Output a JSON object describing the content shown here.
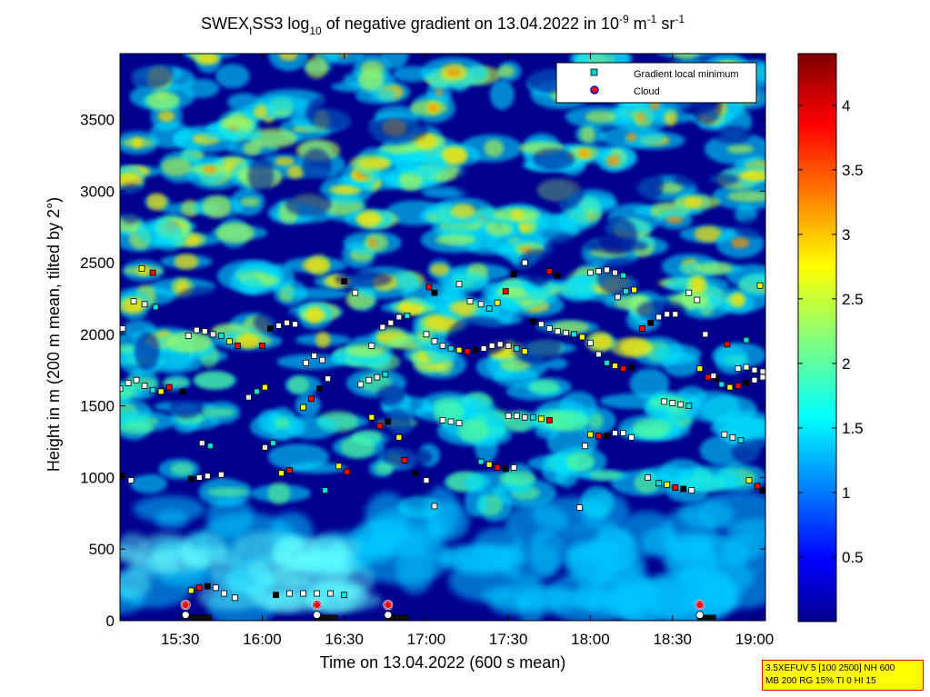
{
  "title": {
    "parts": [
      "SWEX",
      "I",
      "SS3 log",
      "10",
      " of negative gradient on 13.04.2022 in 10",
      "-9",
      " m",
      "-1",
      " sr",
      "-1"
    ]
  },
  "chart_data": {
    "type": "heatmap",
    "xlabel": "Time on 13.04.2022 (600 s mean)",
    "ylabel": "Height in m (200 m mean, tilted by 2°)",
    "x_range": [
      "15:08",
      "19:04"
    ],
    "y_range": [
      0,
      3960
    ],
    "x_ticks": [
      "15:30",
      "16:00",
      "16:30",
      "17:00",
      "17:30",
      "18:00",
      "18:30",
      "19:00"
    ],
    "y_ticks": [
      0,
      500,
      1000,
      1500,
      2000,
      2500,
      3000,
      3500
    ],
    "y_tick_labels": [
      "0",
      "500",
      "1000",
      "1500",
      "2000",
      "2500",
      "3000",
      "3500"
    ],
    "colorbar": {
      "range": [
        0,
        4.4
      ],
      "ticks": [
        0.5,
        1,
        1.5,
        2,
        2.5,
        3,
        3.5,
        4
      ],
      "tick_labels": [
        "0.5",
        "1",
        "1.5",
        "2",
        "2.5",
        "3",
        "3.5",
        "4"
      ],
      "colormap": "jet"
    },
    "legend": {
      "placement": "top-right",
      "entries": [
        {
          "label": "Gradient local minimum",
          "marker": "square",
          "color": "#00d0d0"
        },
        {
          "label": "Cloud",
          "marker": "circle",
          "color": "#ff0000",
          "edge": "#0000cc"
        }
      ]
    },
    "series": [
      {
        "name": "Gradient local minimum",
        "points": [
          [
            "15:08",
            1620
          ],
          [
            "15:11",
            1660
          ],
          [
            "15:14",
            1680
          ],
          [
            "15:17",
            1640
          ],
          [
            "15:20",
            1610
          ],
          [
            "15:23",
            1600
          ],
          [
            "15:26",
            1630
          ],
          [
            "15:09",
            1010
          ],
          [
            "15:12",
            980
          ],
          [
            "15:09",
            2040
          ],
          [
            "15:13",
            2230
          ],
          [
            "15:17",
            2210
          ],
          [
            "15:21",
            2190
          ],
          [
            "15:16",
            2460
          ],
          [
            "15:20",
            2430
          ],
          [
            "15:31",
            1600
          ],
          [
            "15:33",
            1990
          ],
          [
            "15:36",
            2030
          ],
          [
            "15:39",
            2020
          ],
          [
            "15:42",
            2000
          ],
          [
            "15:45",
            1990
          ],
          [
            "15:48",
            1950
          ],
          [
            "15:51",
            1920
          ],
          [
            "15:34",
            990
          ],
          [
            "15:37",
            1000
          ],
          [
            "15:40",
            1010
          ],
          [
            "15:45",
            1020
          ],
          [
            "15:38",
            1240
          ],
          [
            "15:41",
            1220
          ],
          [
            "15:34",
            210
          ],
          [
            "15:37",
            230
          ],
          [
            "15:40",
            240
          ],
          [
            "15:43",
            230
          ],
          [
            "15:46",
            190
          ],
          [
            "15:50",
            160
          ],
          [
            "15:55",
            1560
          ],
          [
            "15:58",
            1600
          ],
          [
            "16:01",
            1630
          ],
          [
            "16:00",
            1920
          ],
          [
            "16:03",
            2040
          ],
          [
            "16:06",
            2060
          ],
          [
            "16:09",
            2080
          ],
          [
            "16:12",
            2070
          ],
          [
            "16:01",
            1210
          ],
          [
            "16:04",
            1240
          ],
          [
            "16:07",
            1030
          ],
          [
            "16:10",
            1050
          ],
          [
            "16:05",
            180
          ],
          [
            "16:10",
            190
          ],
          [
            "16:15",
            190
          ],
          [
            "16:20",
            190
          ],
          [
            "16:25",
            190
          ],
          [
            "16:30",
            180
          ],
          [
            "16:15",
            1490
          ],
          [
            "16:18",
            1550
          ],
          [
            "16:21",
            1620
          ],
          [
            "16:24",
            1690
          ],
          [
            "16:16",
            1800
          ],
          [
            "16:19",
            1850
          ],
          [
            "16:22",
            1820
          ],
          [
            "16:23",
            910
          ],
          [
            "16:28",
            1080
          ],
          [
            "16:31",
            1040
          ],
          [
            "16:30",
            2370
          ],
          [
            "16:34",
            2290
          ],
          [
            "16:36",
            1650
          ],
          [
            "16:39",
            1680
          ],
          [
            "16:42",
            1700
          ],
          [
            "16:45",
            1720
          ],
          [
            "16:40",
            1420
          ],
          [
            "16:43",
            1360
          ],
          [
            "16:46",
            1390
          ],
          [
            "16:40",
            1920
          ],
          [
            "16:44",
            2050
          ],
          [
            "16:47",
            2080
          ],
          [
            "16:50",
            2120
          ],
          [
            "16:53",
            2130
          ],
          [
            "16:50",
            1280
          ],
          [
            "16:52",
            1120
          ],
          [
            "16:56",
            1030
          ],
          [
            "17:00",
            980
          ],
          [
            "17:00",
            2000
          ],
          [
            "17:03",
            1950
          ],
          [
            "17:06",
            1920
          ],
          [
            "17:09",
            1900
          ],
          [
            "17:12",
            1890
          ],
          [
            "17:15",
            1880
          ],
          [
            "17:18",
            1890
          ],
          [
            "17:21",
            1900
          ],
          [
            "17:24",
            1920
          ],
          [
            "17:27",
            1930
          ],
          [
            "17:30",
            1920
          ],
          [
            "17:33",
            1900
          ],
          [
            "17:36",
            1880
          ],
          [
            "17:01",
            2330
          ],
          [
            "17:03",
            2290
          ],
          [
            "17:06",
            1400
          ],
          [
            "17:09",
            1390
          ],
          [
            "17:12",
            1380
          ],
          [
            "17:03",
            800
          ],
          [
            "17:20",
            1110
          ],
          [
            "17:23",
            1090
          ],
          [
            "17:26",
            1070
          ],
          [
            "17:29",
            1060
          ],
          [
            "17:32",
            1070
          ],
          [
            "17:12",
            2350
          ],
          [
            "17:16",
            2230
          ],
          [
            "17:20",
            2210
          ],
          [
            "17:23",
            2180
          ],
          [
            "17:26",
            2220
          ],
          [
            "17:29",
            2300
          ],
          [
            "17:32",
            2420
          ],
          [
            "17:36",
            2500
          ],
          [
            "17:30",
            1430
          ],
          [
            "17:33",
            1430
          ],
          [
            "17:36",
            1420
          ],
          [
            "17:39",
            1420
          ],
          [
            "17:42",
            1410
          ],
          [
            "17:45",
            1400
          ],
          [
            "17:39",
            2090
          ],
          [
            "17:42",
            2070
          ],
          [
            "17:45",
            2040
          ],
          [
            "17:48",
            2020
          ],
          [
            "17:51",
            2010
          ],
          [
            "17:54",
            2000
          ],
          [
            "17:57",
            1980
          ],
          [
            "17:45",
            2440
          ],
          [
            "17:48",
            2410
          ],
          [
            "17:56",
            790
          ],
          [
            "17:58",
            1220
          ],
          [
            "18:00",
            1940
          ],
          [
            "18:03",
            1860
          ],
          [
            "18:06",
            1800
          ],
          [
            "18:09",
            1780
          ],
          [
            "18:12",
            1760
          ],
          [
            "18:15",
            1770
          ],
          [
            "18:00",
            2430
          ],
          [
            "18:03",
            2440
          ],
          [
            "18:06",
            2450
          ],
          [
            "18:09",
            2430
          ],
          [
            "18:12",
            2410
          ],
          [
            "18:00",
            1300
          ],
          [
            "18:03",
            1290
          ],
          [
            "18:06",
            1290
          ],
          [
            "18:09",
            1310
          ],
          [
            "18:12",
            1310
          ],
          [
            "18:15",
            1280
          ],
          [
            "18:10",
            2260
          ],
          [
            "18:13",
            2300
          ],
          [
            "18:16",
            2310
          ],
          [
            "18:19",
            2040
          ],
          [
            "18:22",
            2080
          ],
          [
            "18:25",
            2120
          ],
          [
            "18:28",
            2140
          ],
          [
            "18:31",
            2140
          ],
          [
            "18:21",
            1000
          ],
          [
            "18:25",
            960
          ],
          [
            "18:28",
            950
          ],
          [
            "18:31",
            930
          ],
          [
            "18:34",
            920
          ],
          [
            "18:37",
            910
          ],
          [
            "18:27",
            1530
          ],
          [
            "18:30",
            1520
          ],
          [
            "18:33",
            1510
          ],
          [
            "18:36",
            1500
          ],
          [
            "18:40",
            1760
          ],
          [
            "18:43",
            1700
          ],
          [
            "18:46",
            1690
          ],
          [
            "18:36",
            2290
          ],
          [
            "18:39",
            2240
          ],
          [
            "18:42",
            2000
          ],
          [
            "18:45",
            1710
          ],
          [
            "18:48",
            1650
          ],
          [
            "18:51",
            1630
          ],
          [
            "18:54",
            1640
          ],
          [
            "18:57",
            1660
          ],
          [
            "19:00",
            1680
          ],
          [
            "19:03",
            1700
          ],
          [
            "18:49",
            1300
          ],
          [
            "18:52",
            1280
          ],
          [
            "18:55",
            1260
          ],
          [
            "18:58",
            980
          ],
          [
            "19:01",
            940
          ],
          [
            "19:03",
            910
          ],
          [
            "18:54",
            1760
          ],
          [
            "18:57",
            1770
          ],
          [
            "19:00",
            1750
          ],
          [
            "19:03",
            1740
          ],
          [
            "18:57",
            1960
          ],
          [
            "19:02",
            2340
          ],
          [
            "18:50",
            1930
          ]
        ]
      },
      {
        "name": "Cloud",
        "points": [
          [
            "15:32",
            110
          ],
          [
            "16:20",
            110
          ],
          [
            "16:46",
            110
          ],
          [
            "18:40",
            110
          ]
        ]
      }
    ]
  },
  "info_box": {
    "line1": "3.5XEFUV 5 [100 2500] NH 600",
    "line2": "MB 200 RG 15% TI 0 HI 15"
  }
}
